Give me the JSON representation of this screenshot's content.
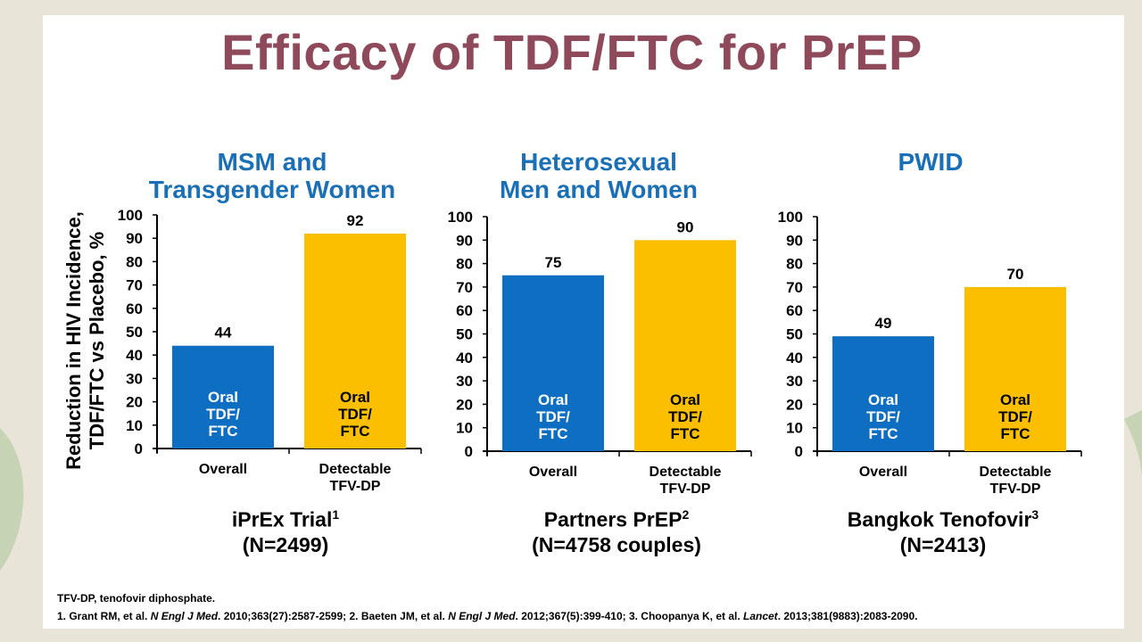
{
  "title": "Efficacy of TDF/FTC for PrEP",
  "y_axis_label_line1": "Reduction in HIV Incidence,",
  "y_axis_label_line2": "TDF/FTC vs Placebo, %",
  "colors": {
    "title": "#8e4a5a",
    "panel_title": "#1a6fb5",
    "bar_overall": "#0e6fc2",
    "bar_detectable": "#fbbf00",
    "label_on_blue": "#ffffff",
    "label_on_yellow": "#000000"
  },
  "chart_data": [
    {
      "type": "bar",
      "title": [
        "MSM and",
        "Transgender Women"
      ],
      "categories": [
        "Overall",
        [
          "Detectable",
          "TFV-DP"
        ]
      ],
      "values": [
        44,
        92
      ],
      "bar_labels": [
        [
          "Oral",
          "TDF/",
          "FTC"
        ],
        [
          "Oral",
          "TDF/",
          "FTC"
        ]
      ],
      "ylim": [
        0,
        100
      ],
      "yticks": [
        0,
        10,
        20,
        30,
        40,
        50,
        60,
        70,
        80,
        90,
        100
      ],
      "subtitle": "iPrEx Trial",
      "subtitle_ref": "1",
      "n_label": "(N=2499)"
    },
    {
      "type": "bar",
      "title": [
        "Heterosexual",
        "Men and Women"
      ],
      "categories": [
        "Overall",
        [
          "Detectable",
          "TFV-DP"
        ]
      ],
      "values": [
        75,
        90
      ],
      "bar_labels": [
        [
          "Oral",
          "TDF/",
          "FTC"
        ],
        [
          "Oral",
          "TDF/",
          "FTC"
        ]
      ],
      "ylim": [
        0,
        100
      ],
      "yticks": [
        0,
        10,
        20,
        30,
        40,
        50,
        60,
        70,
        80,
        90,
        100
      ],
      "subtitle": "Partners PrEP",
      "subtitle_ref": "2",
      "n_label": "(N=4758 couples)"
    },
    {
      "type": "bar",
      "title": [
        "PWID"
      ],
      "categories": [
        "Overall",
        [
          "Detectable",
          "TFV-DP"
        ]
      ],
      "values": [
        49,
        70
      ],
      "bar_labels": [
        [
          "Oral",
          "TDF/",
          "FTC"
        ],
        [
          "Oral",
          "TDF/",
          "FTC"
        ]
      ],
      "ylim": [
        0,
        100
      ],
      "yticks": [
        0,
        10,
        20,
        30,
        40,
        50,
        60,
        70,
        80,
        90,
        100
      ],
      "subtitle": "Bangkok Tenofovir",
      "subtitle_ref": "3",
      "n_label": "(N=2413)"
    }
  ],
  "footnotes": {
    "abbrev": "TFV-DP, tenofovir diphosphate.",
    "ref1_pre": "1. Grant RM, et al. ",
    "ref1_journal": "N Engl J Med",
    "ref1_post": ". 2010;363(27):2587-2599;  ",
    "ref2_pre": "2. Baeten JM, et al. ",
    "ref2_journal": "N Engl J Med",
    "ref2_post": ". 2012;367(5):399-410;  ",
    "ref3_pre": "3. Choopanya K, et al. ",
    "ref3_journal": "Lancet",
    "ref3_post": ". 2013;381(9883):2083-2090."
  }
}
